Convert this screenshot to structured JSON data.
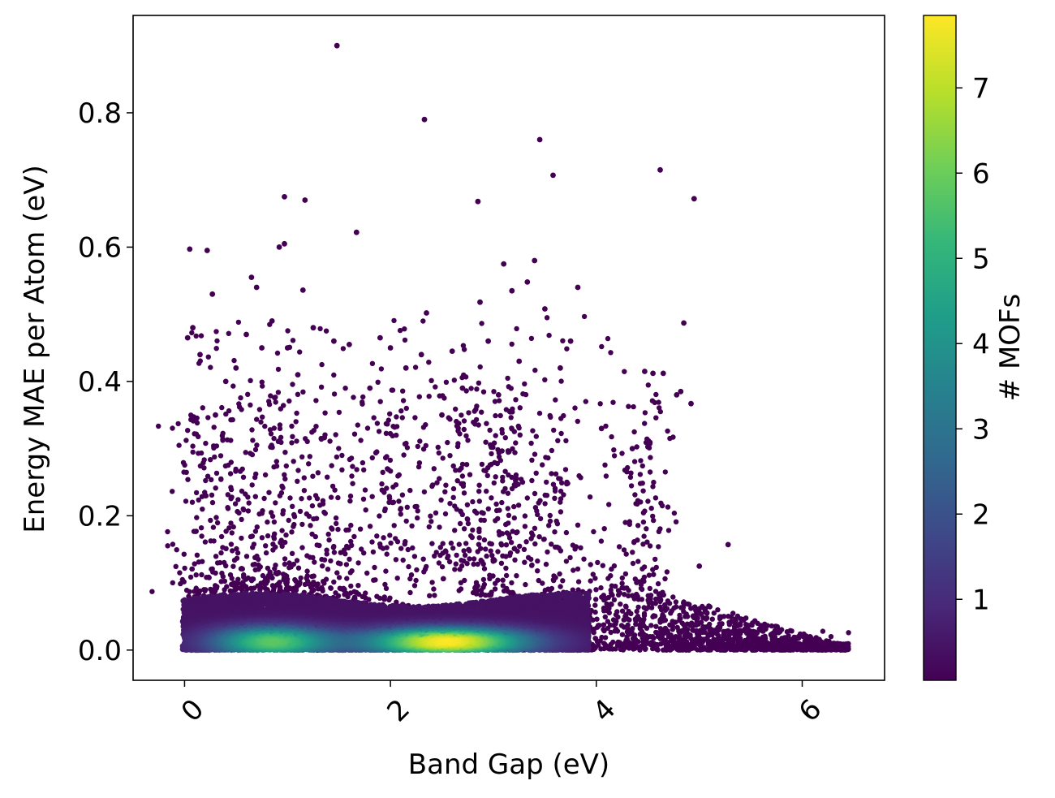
{
  "chart_data": {
    "type": "scatter",
    "title": "",
    "xlabel": "Band Gap (eV)",
    "ylabel": "Energy MAE per Atom (eV)",
    "xlim": [
      -0.5,
      6.8
    ],
    "ylim": [
      -0.045,
      0.945
    ],
    "xticks": [
      0,
      2,
      4,
      6
    ],
    "xtick_labels": [
      "0",
      "2",
      "4",
      "6"
    ],
    "yticks": [
      0.0,
      0.2,
      0.4,
      0.6,
      0.8
    ],
    "ytick_labels": [
      "0.0",
      "0.2",
      "0.4",
      "0.6",
      "0.8"
    ],
    "grid": false,
    "colormap": "viridis",
    "colorbar": {
      "label": "# MOFs",
      "range": [
        0.05,
        7.85
      ],
      "ticks": [
        1,
        2,
        3,
        4,
        5,
        6,
        7
      ],
      "tick_labels": [
        "1",
        "2",
        "3",
        "4",
        "5",
        "6",
        "7"
      ]
    },
    "colors": {
      "viridis": [
        "#440154",
        "#482878",
        "#3e4989",
        "#31688e",
        "#26828e",
        "#1f9e89",
        "#35b779",
        "#6ece58",
        "#b5de2b",
        "#fde725"
      ]
    },
    "outliers": {
      "x": [
        1.48,
        2.33,
        3.45,
        4.62,
        3.58,
        0.97,
        1.17,
        2.85,
        4.95,
        1.67,
        0.05,
        0.22,
        0.97,
        0.92,
        3.1,
        3.4,
        0.65,
        0.7,
        0.08,
        0.27,
        1.15,
        3.18,
        3.33,
        3.5,
        3.82,
        2.35,
        2.87,
        0.85,
        0.15,
        0.03,
        0.4,
        0.6,
        4.85,
        4.47,
        4.55,
        4.65,
        4.78,
        4.82,
        4.92,
        5.28,
        5.0,
        1.25,
        1.45,
        1.9,
        2.0,
        2.15,
        2.3,
        2.6,
        2.95,
        3.25,
        3.65,
        3.75,
        4.05,
        4.35,
        1.0,
        1.1,
        2.5,
        2.7,
        3.05,
        1.6,
        1.8,
        0.75,
        0.5,
        0.3
      ],
      "y": [
        0.9,
        0.79,
        0.76,
        0.715,
        0.707,
        0.675,
        0.67,
        0.668,
        0.672,
        0.622,
        0.597,
        0.595,
        0.605,
        0.6,
        0.575,
        0.58,
        0.555,
        0.54,
        0.48,
        0.53,
        0.536,
        0.535,
        0.548,
        0.508,
        0.54,
        0.502,
        0.518,
        0.49,
        0.44,
        0.465,
        0.4,
        0.47,
        0.487,
        0.415,
        0.412,
        0.412,
        0.38,
        0.385,
        0.367,
        0.157,
        0.125,
        0.48,
        0.46,
        0.465,
        0.45,
        0.42,
        0.44,
        0.445,
        0.46,
        0.43,
        0.42,
        0.46,
        0.33,
        0.3,
        0.45,
        0.41,
        0.35,
        0.39,
        0.38,
        0.455,
        0.39,
        0.45,
        0.42,
        0.35
      ]
    },
    "sparse_cloud": {
      "description_note": "",
      "max_x": 6.45
    },
    "dense_core": {
      "peak_x": 2.55,
      "peak_y": 0.012,
      "secondary_peak_x": 0.85,
      "secondary_peak_y": 0.012
    }
  }
}
